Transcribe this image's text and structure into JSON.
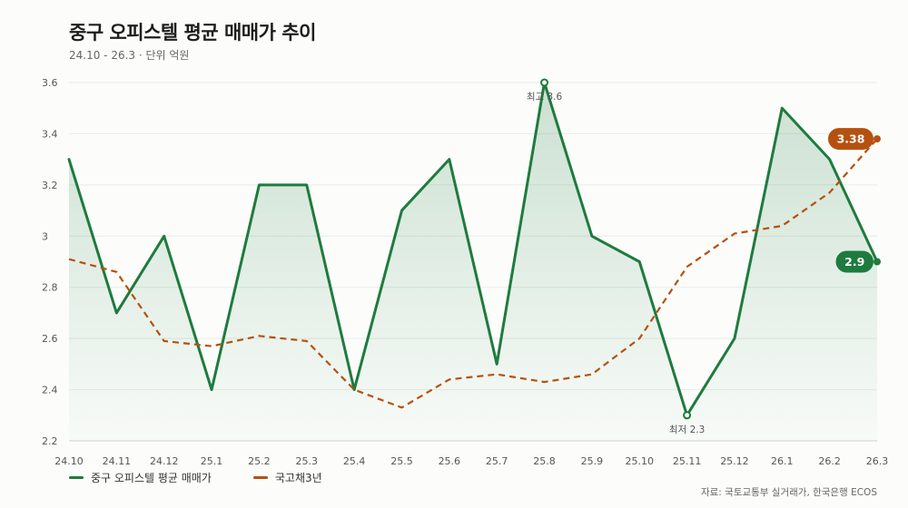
{
  "header": {
    "title": "중구 오피스텔 평균 매매가 추이",
    "subtitle": "24.10 - 26.3 · 단위 억원"
  },
  "footer": {
    "source": "자료: 국토교통부 실거래가, 한국은행 ECOS"
  },
  "colors": {
    "primary": "#1e7b3e",
    "secondary": "#b5510f",
    "grid": "#e8ebe6",
    "axis_text": "#555555"
  },
  "chart_data": {
    "type": "line",
    "title": "중구 오피스텔 평균 매매가 추이",
    "subtitle": "24.10 - 26.3 · 단위 억원",
    "xlabel": "",
    "ylabel": "",
    "categories": [
      "24.10",
      "24.11",
      "24.12",
      "25.1",
      "25.2",
      "25.3",
      "25.4",
      "25.5",
      "25.6",
      "25.7",
      "25.8",
      "25.9",
      "25.10",
      "25.11",
      "25.12",
      "26.1",
      "26.2",
      "26.3"
    ],
    "ylim": [
      2.2,
      3.6
    ],
    "yticks": [
      2.2,
      2.4,
      2.6,
      2.8,
      3,
      3.2,
      3.4,
      3.6
    ],
    "ytick_labels": [
      "2.2",
      "2.4",
      "2.6",
      "2.8",
      "3",
      "3.2",
      "3.4",
      "3.6"
    ],
    "grid": true,
    "legend_position": "bottom-left",
    "series": [
      {
        "name": "중구 오피스텔 평균 매매가",
        "style": "solid-area",
        "color": "#1e7b3e",
        "values": [
          3.3,
          2.7,
          3.0,
          2.4,
          3.2,
          3.2,
          2.4,
          3.1,
          3.3,
          2.5,
          3.6,
          3.0,
          2.9,
          2.3,
          2.6,
          3.5,
          3.3,
          2.9
        ],
        "end_label": "2.9"
      },
      {
        "name": "국고채3년",
        "style": "dashed",
        "color": "#b5510f",
        "values": [
          2.91,
          2.86,
          2.59,
          2.57,
          2.61,
          2.59,
          2.4,
          2.33,
          2.44,
          2.46,
          2.43,
          2.46,
          2.6,
          2.88,
          3.01,
          3.04,
          3.17,
          3.38
        ],
        "end_label": "3.38"
      }
    ],
    "annotations": [
      {
        "series": 0,
        "index": 10,
        "text": "최고 3.6",
        "position": "below"
      },
      {
        "series": 0,
        "index": 13,
        "text": "최저 2.3",
        "position": "below"
      }
    ]
  }
}
